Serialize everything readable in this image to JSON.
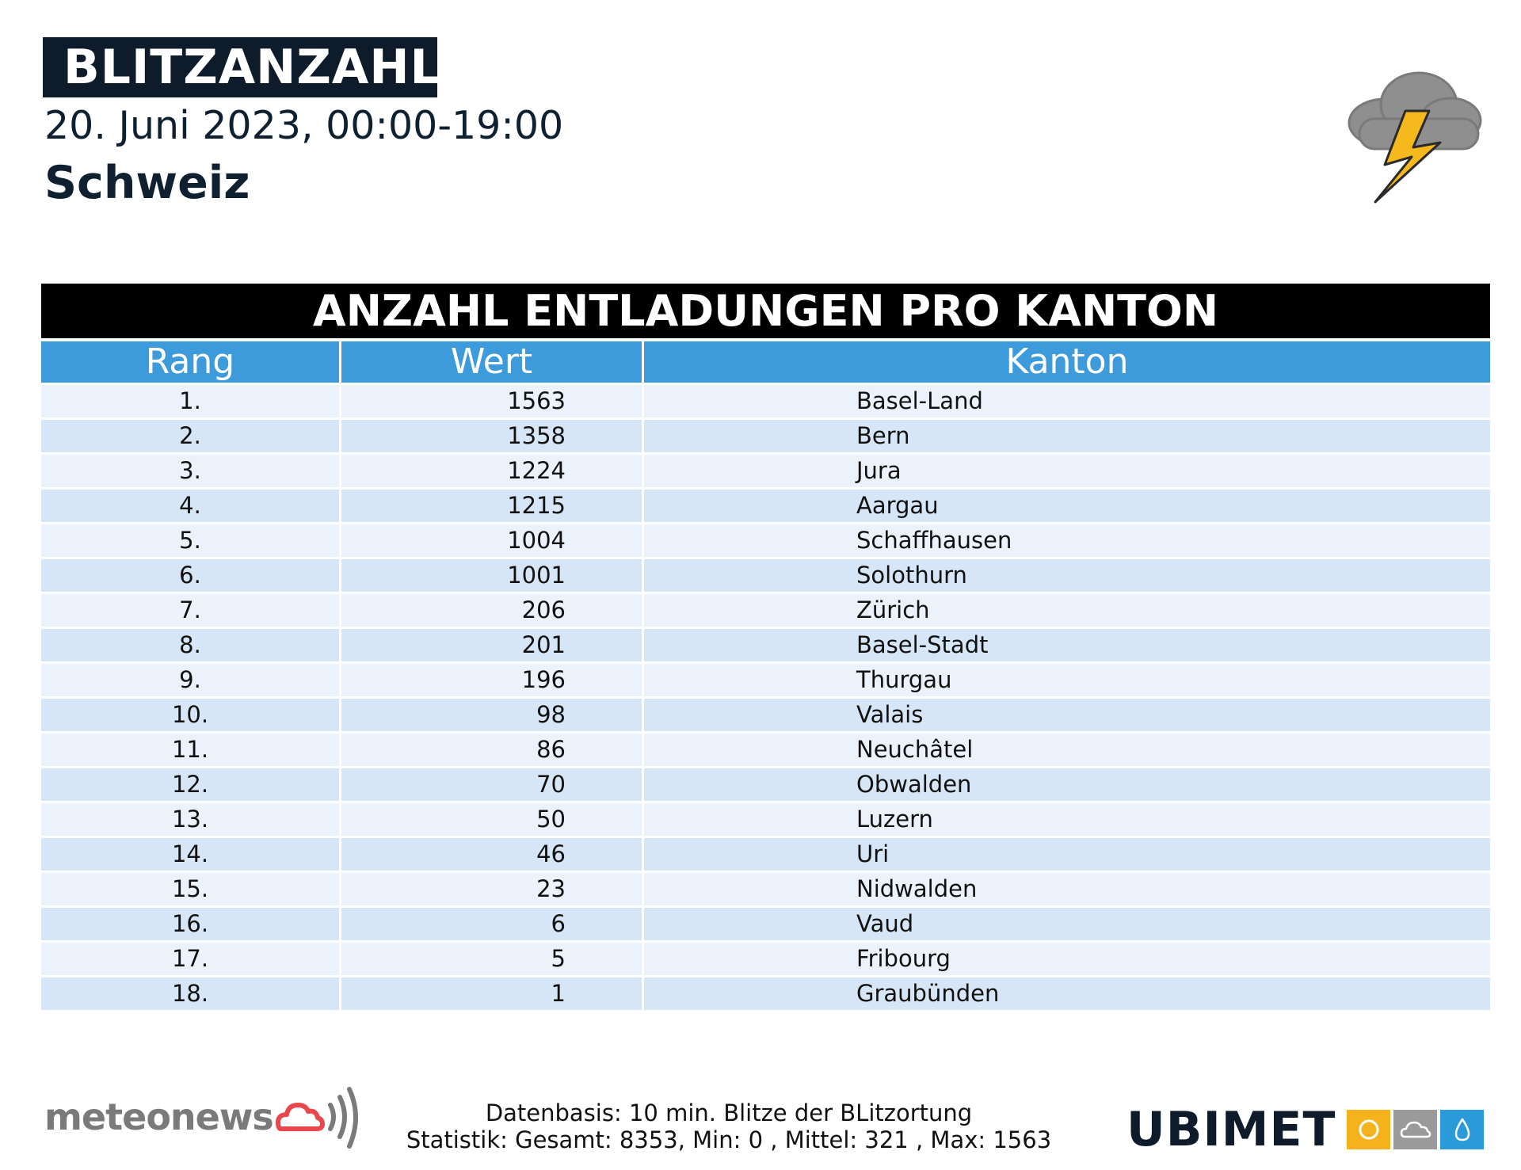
{
  "header": {
    "title": "BLITZANZAHL",
    "subtitle": "20. Juni 2023, 00:00-19:00",
    "region": "Schweiz",
    "icon": "thunderstorm-icon"
  },
  "table": {
    "title": "ANZAHL ENTLADUNGEN PRO KANTON",
    "columns": [
      "Rang",
      "Wert",
      "Kanton"
    ],
    "rows": [
      {
        "rang": "1.",
        "wert": "1563",
        "kanton": "Basel-Land"
      },
      {
        "rang": "2.",
        "wert": "1358",
        "kanton": "Bern"
      },
      {
        "rang": "3.",
        "wert": "1224",
        "kanton": "Jura"
      },
      {
        "rang": "4.",
        "wert": "1215",
        "kanton": "Aargau"
      },
      {
        "rang": "5.",
        "wert": "1004",
        "kanton": "Schaffhausen"
      },
      {
        "rang": "6.",
        "wert": "1001",
        "kanton": "Solothurn"
      },
      {
        "rang": "7.",
        "wert": "206",
        "kanton": "Zürich"
      },
      {
        "rang": "8.",
        "wert": "201",
        "kanton": "Basel-Stadt"
      },
      {
        "rang": "9.",
        "wert": "196",
        "kanton": "Thurgau"
      },
      {
        "rang": "10.",
        "wert": "98",
        "kanton": "Valais"
      },
      {
        "rang": "11.",
        "wert": "86",
        "kanton": "Neuchâtel"
      },
      {
        "rang": "12.",
        "wert": "70",
        "kanton": "Obwalden"
      },
      {
        "rang": "13.",
        "wert": "50",
        "kanton": "Luzern"
      },
      {
        "rang": "14.",
        "wert": "46",
        "kanton": "Uri"
      },
      {
        "rang": "15.",
        "wert": "23",
        "kanton": "Nidwalden"
      },
      {
        "rang": "16.",
        "wert": "6",
        "kanton": "Vaud"
      },
      {
        "rang": "17.",
        "wert": "5",
        "kanton": "Fribourg"
      },
      {
        "rang": "18.",
        "wert": "1",
        "kanton": "Graubünden"
      }
    ]
  },
  "footer": {
    "line1": "Datenbasis: 10 min. Blitze der BLitzortung",
    "line2": "Statistik: Gesamt: 8353, Min: 0 , Mittel: 321 , Max: 1563",
    "meteonews_logo": "meteonews",
    "ubimet_logo": "UBIMET"
  },
  "colors": {
    "header_blue": "#3d9bdc",
    "row_light": "#ebf2fb",
    "row_dark": "#d7e6f6",
    "navy": "#0d1b2a",
    "ubimet_yellow": "#f4b31c",
    "ubimet_gray": "#9a9a9a",
    "ubimet_blue": "#2a9bd8"
  }
}
